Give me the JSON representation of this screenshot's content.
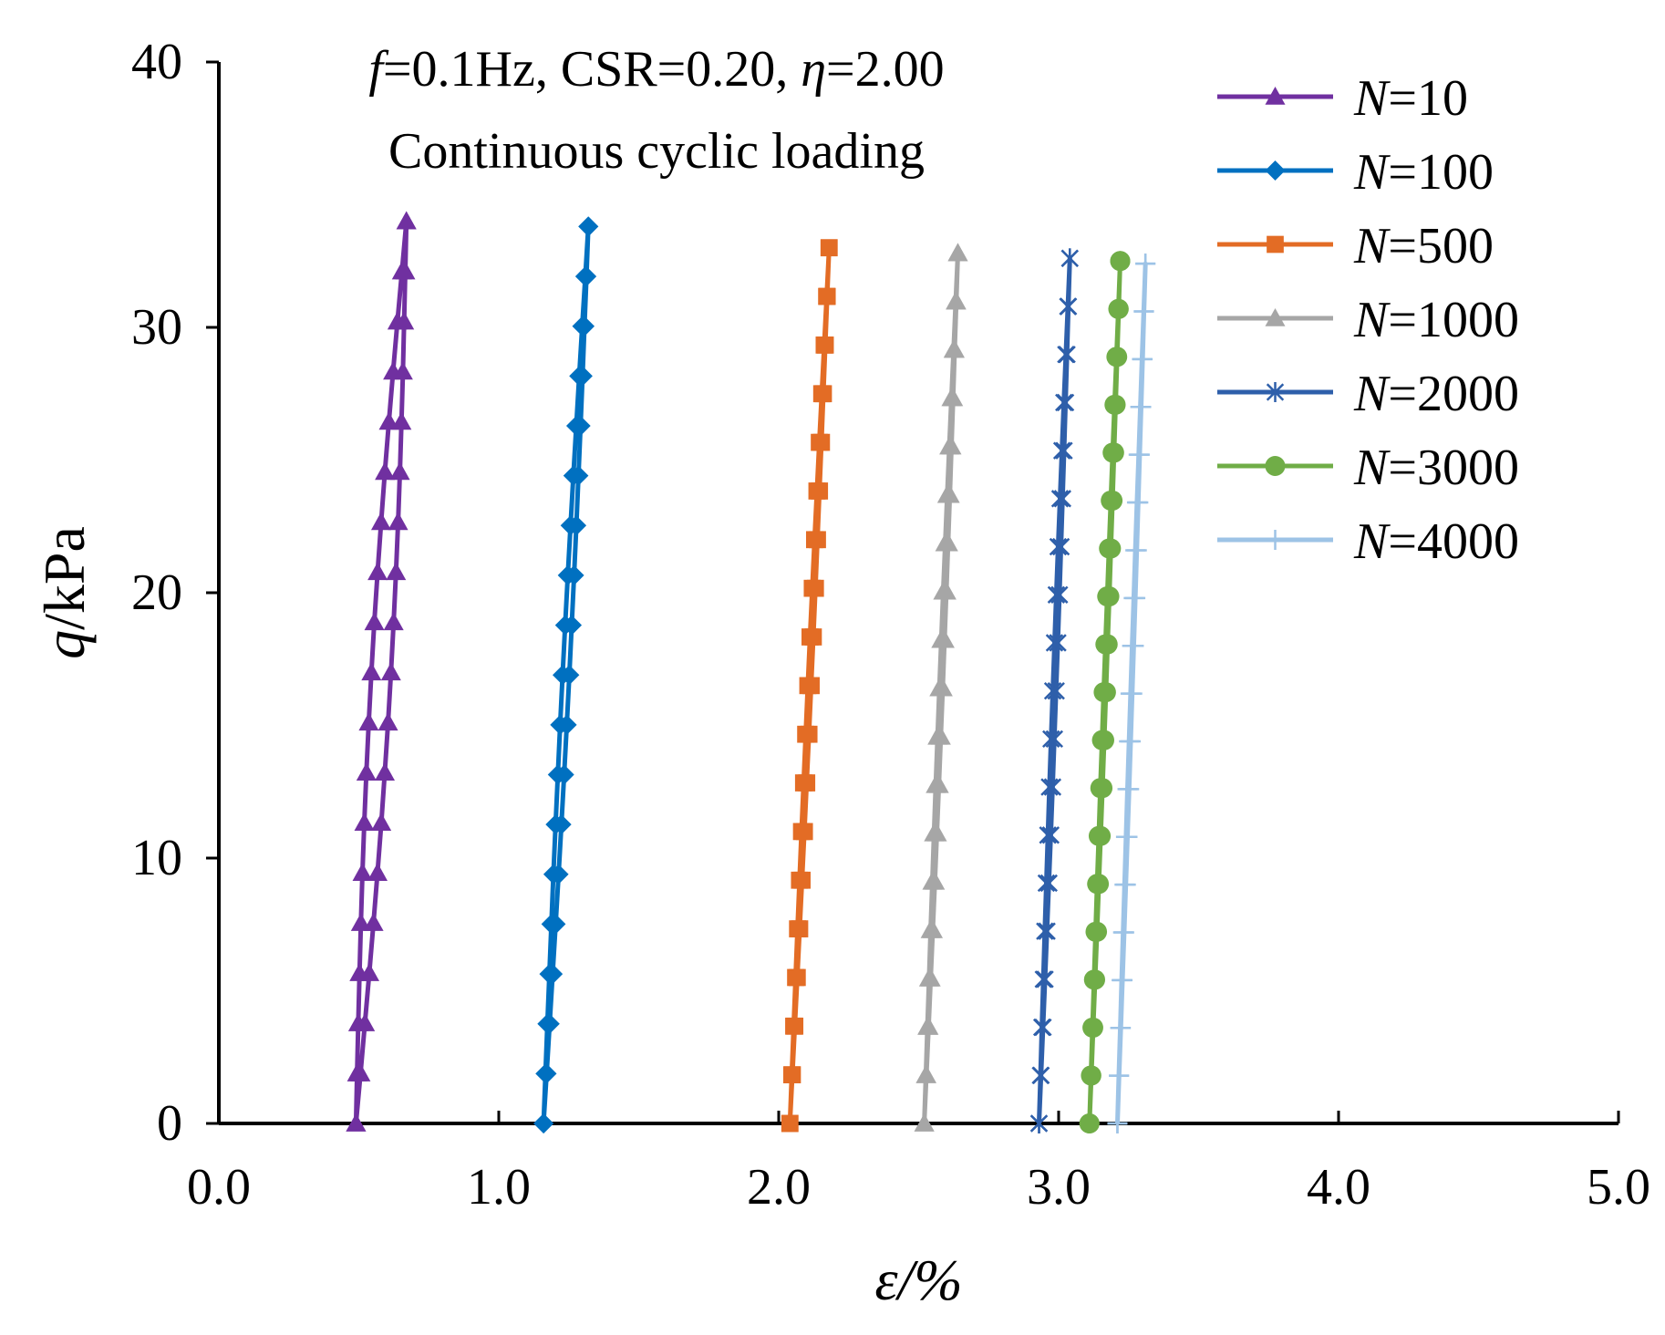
{
  "chart_data": {
    "type": "line",
    "title": "",
    "annotations": {
      "line1_parts": {
        "f_symbol": "f",
        "f_value": "=0.1Hz, CSR=0.20, ",
        "eta_symbol": "η",
        "eta_value": "=2.00"
      },
      "line2": "Continuous cyclic loading"
    },
    "xlabel": "ε/%",
    "ylabel": {
      "symbol": "q",
      "unit": "/kPa"
    },
    "xlim": [
      0,
      5
    ],
    "ylim": [
      0,
      40
    ],
    "xticks": [
      "0.0",
      "1.0",
      "2.0",
      "3.0",
      "4.0",
      "5.0"
    ],
    "yticks": [
      "0",
      "10",
      "20",
      "30",
      "40"
    ],
    "legend_position": "top-right",
    "series": [
      {
        "name": "N=10",
        "symbol": "N",
        "value": "=10",
        "color": "#7030A0",
        "marker": "triangle",
        "eps_min": 0.49,
        "eps_max": 0.67,
        "q_max": 34.0,
        "width": 0.035
      },
      {
        "name": "N=100",
        "symbol": "N",
        "value": "=100",
        "color": "#0070C0",
        "marker": "diamond",
        "eps_min": 1.16,
        "eps_max": 1.32,
        "q_max": 33.8,
        "width": 0.012
      },
      {
        "name": "N=500",
        "symbol": "N",
        "value": "=500",
        "color": "#E36C25",
        "marker": "square",
        "eps_min": 2.04,
        "eps_max": 2.18,
        "q_max": 33.0,
        "width": 0.006
      },
      {
        "name": "N=1000",
        "symbol": "N",
        "value": "=1000",
        "color": "#A6A6A6",
        "marker": "triangle",
        "eps_min": 2.52,
        "eps_max": 2.64,
        "q_max": 32.8,
        "width": 0.006
      },
      {
        "name": "N=2000",
        "symbol": "N",
        "value": "=2000",
        "color": "#2E5FAA",
        "marker": "star",
        "eps_min": 2.93,
        "eps_max": 3.04,
        "q_max": 32.6,
        "width": 0.006
      },
      {
        "name": "N=3000",
        "symbol": "N",
        "value": "=3000",
        "color": "#70AD47",
        "marker": "circle",
        "eps_min": 3.11,
        "eps_max": 3.22,
        "q_max": 32.5,
        "width": 0.004
      },
      {
        "name": "N=4000",
        "symbol": "N",
        "value": "=4000",
        "color": "#9DC3E6",
        "marker": "plus",
        "eps_min": 3.21,
        "eps_max": 3.31,
        "q_max": 32.4,
        "width": 0.003
      }
    ]
  }
}
